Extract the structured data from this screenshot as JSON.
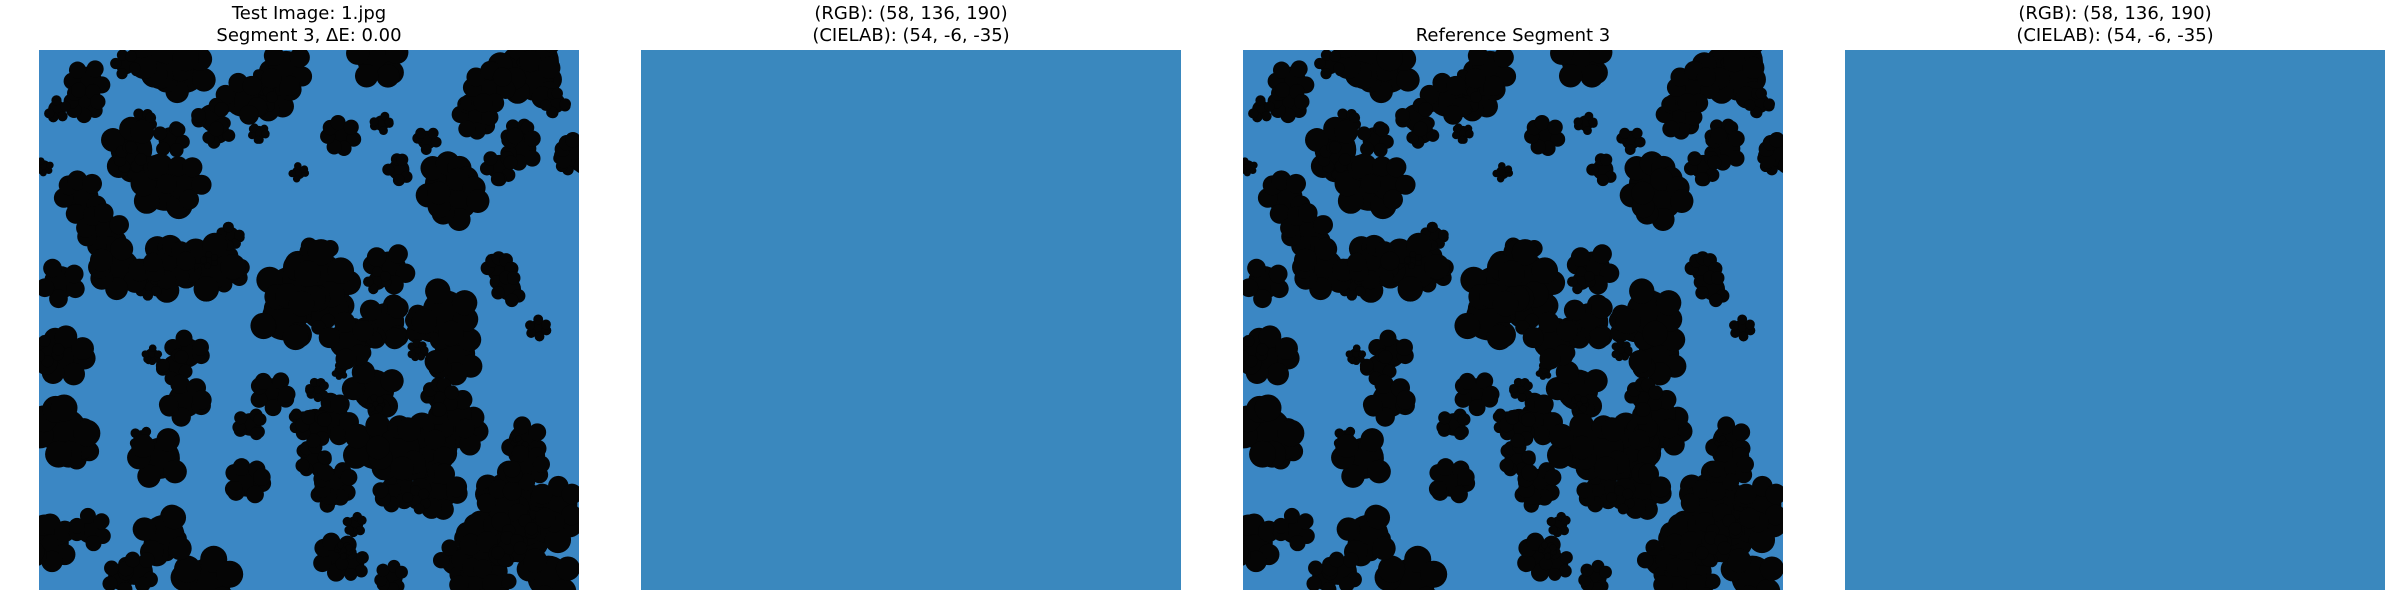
{
  "panels": [
    {
      "kind": "image",
      "title": [
        "Test Image: 1.jpg",
        "Segment 3, ΔE: 0.00"
      ]
    },
    {
      "kind": "swatch",
      "color": "#3a88be",
      "title": [
        "(RGB): (58, 136, 190)",
        "(CIELAB): (54, -6, -35)"
      ]
    },
    {
      "kind": "image",
      "title": [
        "Reference Segment 3"
      ]
    },
    {
      "kind": "swatch",
      "color": "#3a88be",
      "title": [
        "(RGB): (58, 136, 190)",
        "(CIELAB): (54, -6, -35)"
      ]
    }
  ]
}
